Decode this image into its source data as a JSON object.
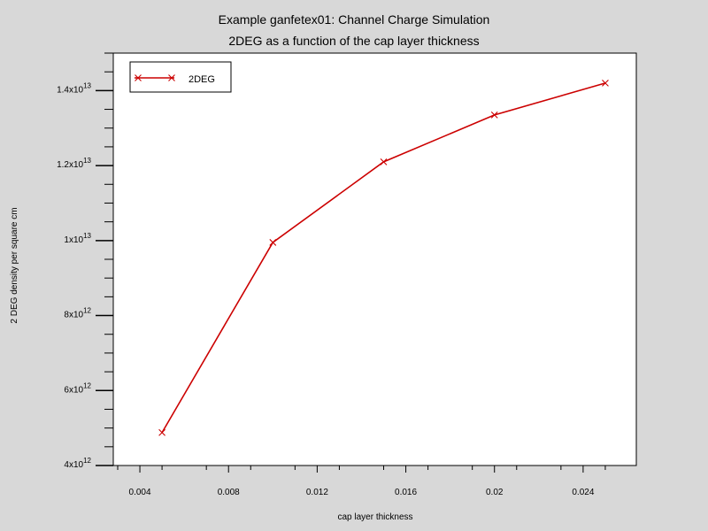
{
  "chart_data": {
    "type": "line",
    "title": "Example ganfetex01: Channel Charge Simulation",
    "subtitle": "2DEG as a function of the cap layer thickness",
    "xlabel": "cap layer thickness",
    "ylabel": "2 DEG density per square cm",
    "xlim": [
      0.0028,
      0.0264
    ],
    "ylim": [
      4000000000000.0,
      15000000000000.0
    ],
    "x_ticks": [
      0.004,
      0.008,
      0.012,
      0.016,
      0.02,
      0.024
    ],
    "x_tick_labels": [
      "0.004",
      "0.008",
      "0.012",
      "0.016",
      "0.02",
      "0.024"
    ],
    "y_ticks": [
      {
        "value": 4000000000000.0,
        "mantissa": "4x10",
        "exp": "12"
      },
      {
        "value": 6000000000000.0,
        "mantissa": "6x10",
        "exp": "12"
      },
      {
        "value": 8000000000000.0,
        "mantissa": "8x10",
        "exp": "12"
      },
      {
        "value": 10000000000000.0,
        "mantissa": "1x10",
        "exp": "13"
      },
      {
        "value": 12000000000000.0,
        "mantissa": "1.2x10",
        "exp": "13"
      },
      {
        "value": 14000000000000.0,
        "mantissa": "1.4x10",
        "exp": "13"
      }
    ],
    "grid": false,
    "legend_position": "top-left",
    "series": [
      {
        "name": "2DEG",
        "color": "#cc0000",
        "marker": "x",
        "x": [
          0.005,
          0.01,
          0.015,
          0.02,
          0.025
        ],
        "y": [
          4880000000000.0,
          9950000000000.0,
          12100000000000.0,
          13350000000000.0,
          14200000000000.0
        ]
      }
    ]
  }
}
